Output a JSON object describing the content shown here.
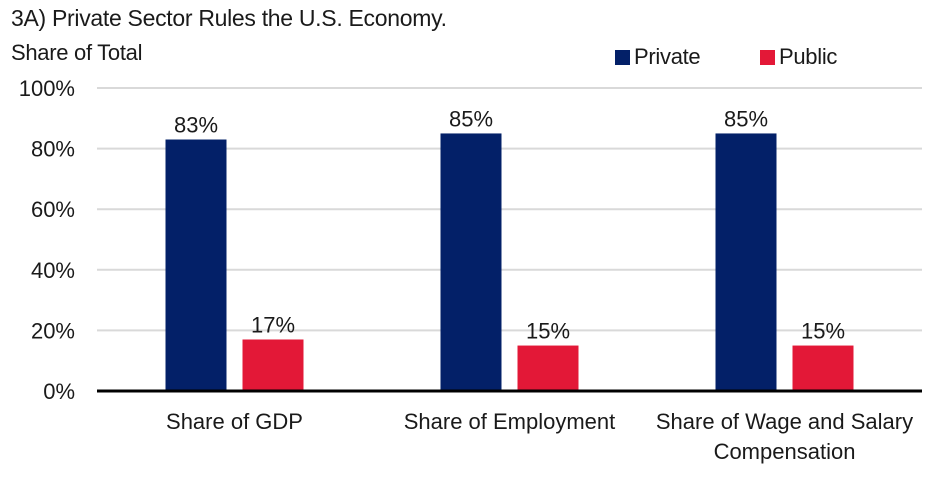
{
  "chart_data": {
    "type": "bar",
    "title": "3A) Private Sector Rules the U.S. Economy.",
    "ylabel": "Share of Total",
    "xlabel": "",
    "categories": [
      [
        "Share of GDP"
      ],
      [
        "Share of Employment"
      ],
      [
        "Share of Wage and Salary",
        "Compensation"
      ]
    ],
    "series": [
      {
        "name": "Private",
        "color": "#032068",
        "values": [
          83,
          85,
          85
        ],
        "labels": [
          "83%",
          "85%",
          "85%"
        ]
      },
      {
        "name": "Public",
        "color": "#e31837",
        "values": [
          17,
          15,
          15
        ],
        "labels": [
          "17%",
          "15%",
          "15%"
        ]
      }
    ],
    "ylim": [
      0,
      100
    ],
    "yticks": [
      0,
      20,
      40,
      60,
      80,
      100
    ],
    "ytick_labels": [
      "0%",
      "20%",
      "40%",
      "60%",
      "80%",
      "100%"
    ],
    "grid": true,
    "gridline_color": "#d9d9d9",
    "axis_color": "#000000",
    "legend_position": "top-right"
  }
}
